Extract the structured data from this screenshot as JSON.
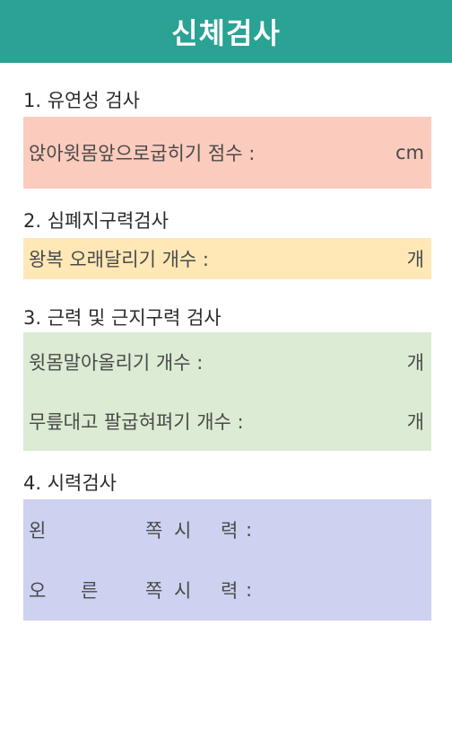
{
  "header": {
    "title": "신체검사"
  },
  "sections": [
    {
      "title": "1. 유연성 검사",
      "rows": [
        {
          "label": "앉아윗몸앞으로굽히기 점수 :",
          "unit": "cm"
        }
      ]
    },
    {
      "title": "2. 심폐지구력검사",
      "rows": [
        {
          "label": "왕복 오래달리기 개수 :",
          "unit": "개"
        }
      ]
    },
    {
      "title": "3. 근력 및 근지구력 검사",
      "rows": [
        {
          "label": "윗몸말아올리기 개수 :",
          "unit": "개"
        },
        {
          "label": "무릎대고 팔굽혀펴기 개수 :",
          "unit": "개"
        }
      ]
    },
    {
      "title": "4. 시력검사",
      "rows": [
        {
          "parts": [
            "왼",
            "쪽",
            "시",
            "력",
            ":"
          ]
        },
        {
          "parts": [
            "오",
            "른",
            "쪽",
            "시",
            "력",
            ":"
          ]
        }
      ]
    }
  ],
  "colors": {
    "header": "#2aa294",
    "flexibility": "#fbcbbd",
    "cardio": "#ffe8b6",
    "strength": "#dcebd3",
    "vision": "#cdd2f0"
  }
}
